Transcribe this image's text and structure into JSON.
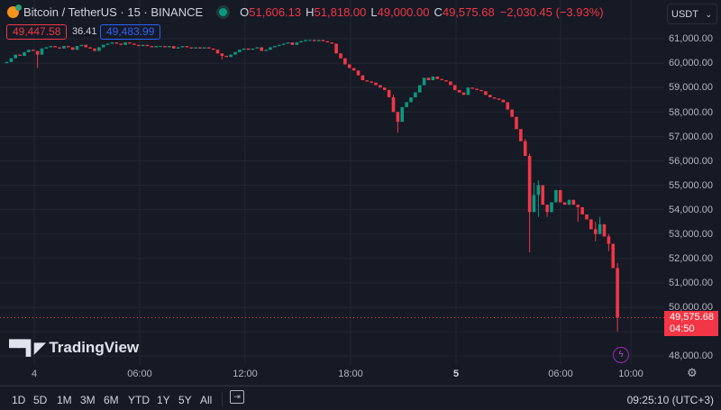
{
  "header": {
    "symbol": "Bitcoin / TetherUS · 15 · BINANCE",
    "o_label": "O",
    "o": "51,606.13",
    "h_label": "H",
    "h": "51,818.00",
    "l_label": "L",
    "l": "49,000.00",
    "c_label": "C",
    "c": "49,575.68",
    "change": "−2,030.45 (−3.93%)",
    "bid": "49,447.58",
    "spread": "36.41",
    "ask": "49,483.99"
  },
  "currency_select": "USDT",
  "last_price": {
    "value": "49,575.68",
    "countdown": "04:50"
  },
  "logo": "TradingView",
  "range_buttons": [
    "1D",
    "5D",
    "1M",
    "3M",
    "6M",
    "YTD",
    "1Y",
    "5Y",
    "All"
  ],
  "clock": "09:25:10 (UTC+3)",
  "colors": {
    "up": "#089981",
    "down": "#f23645",
    "background": "#161a25",
    "grid": "#222633"
  },
  "chart_data": {
    "type": "candlestick",
    "interval": "15",
    "y_tick_labels": [
      "61,000.00",
      "60,000.00",
      "59,000.00",
      "58,000.00",
      "57,000.00",
      "56,000.00",
      "55,000.00",
      "54,000.00",
      "53,000.00",
      "52,000.00",
      "51,000.00",
      "50,000.00",
      "48,000.00"
    ],
    "x_tick_labels": [
      "4",
      "06:00",
      "12:00",
      "18:00",
      "5",
      "06:00",
      "10:00"
    ],
    "ylim": [
      47800,
      61600
    ],
    "grid": true,
    "first_open": 60000,
    "close": [
      60050,
      60200,
      60350,
      60300,
      60450,
      60550,
      60500,
      60350,
      60600,
      60650,
      60700,
      60650,
      60600,
      60700,
      60650,
      60550,
      60700,
      60750,
      60650,
      60600,
      60500,
      60650,
      60750,
      60800,
      60850,
      60800,
      60750,
      60850,
      60800,
      60750,
      60700,
      60750,
      60700,
      60650,
      60700,
      60700,
      60650,
      60700,
      60600,
      60650,
      60700,
      60650,
      60600,
      60650,
      60600,
      60650,
      60600,
      60550,
      60400,
      60300,
      60250,
      60350,
      60450,
      60550,
      60600,
      60550,
      60600,
      60650,
      60500,
      60550,
      60650,
      60700,
      60750,
      60800,
      60850,
      60750,
      60850,
      60900,
      60950,
      60950,
      60900,
      60950,
      60900,
      60850,
      60800,
      60400,
      60200,
      59950,
      59800,
      59700,
      59500,
      59300,
      59250,
      59200,
      59100,
      59000,
      58900,
      58600,
      58000,
      57600,
      58200,
      58400,
      58600,
      58800,
      59100,
      59400,
      59300,
      59450,
      59350,
      59300,
      59250,
      59100,
      58900,
      58800,
      58700,
      59000,
      58950,
      58900,
      58850,
      58700,
      58600,
      58550,
      58500,
      58400,
      58100,
      57800,
      57300,
      56800,
      56200,
      53900,
      54600,
      55000,
      54200,
      53900,
      54300,
      54800,
      54300,
      54200,
      54400,
      54200,
      54100,
      53800,
      53600,
      53200,
      53000,
      53400,
      52900,
      52600,
      51606.13,
      49575.68
    ],
    "wick_highs": {
      "88": 58700,
      "117": 57200,
      "118": 56900,
      "119": 56300,
      "120": 55100,
      "121": 55200,
      "134": 53500,
      "135": 53700,
      "137": 53000,
      "138": 51900,
      "139": 51818
    },
    "wick_lows": {
      "7": 59800,
      "49": 60150,
      "89": 57150,
      "119": 52250,
      "121": 53700,
      "123": 53700,
      "130": 53500,
      "134": 52700,
      "137": 52300,
      "139": 49000
    }
  }
}
